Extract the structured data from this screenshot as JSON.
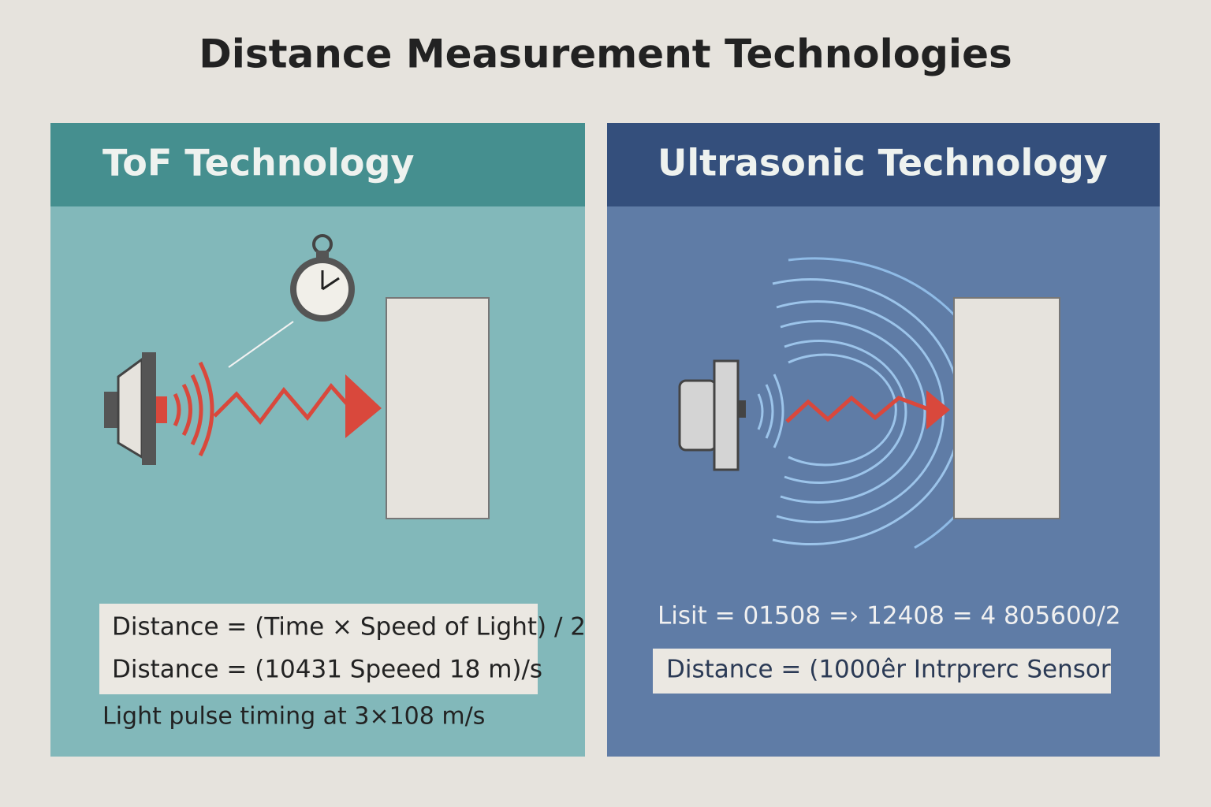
{
  "header": {
    "title": "Distance Measurement Technologies"
  },
  "panels": [
    {
      "title": "ToF Technology",
      "formulas": [
        "Distance = (Time × Speed of Light) / 2",
        "Distance = (10431 Speeed 18 m)/s"
      ],
      "caption": "Light pulse timing at 3×108 m/s"
    },
    {
      "title": "Ultrasonic Technology",
      "formula_line": "Lisit = 01508 =› 12408 = 4 805600/2",
      "formulas": [
        "Distance = (1000êr Intrprerc Sensor"
      ]
    }
  ]
}
